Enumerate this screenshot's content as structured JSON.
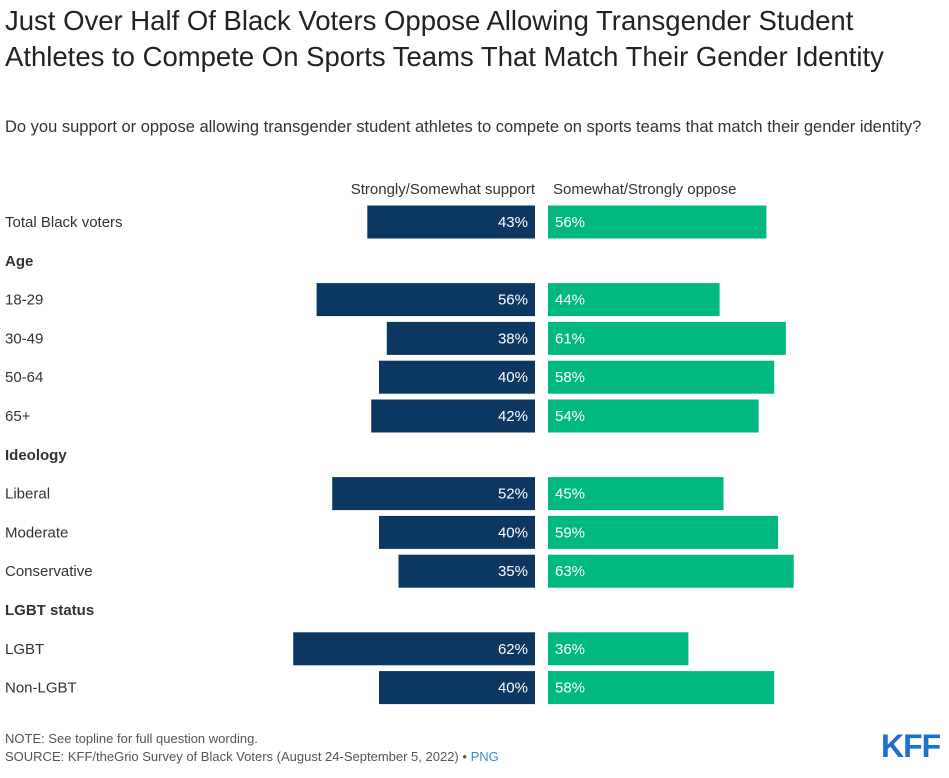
{
  "header": {
    "title": "Just Over Half Of Black Voters Oppose Allowing Transgender Student Athletes to Compete On Sports Teams That Match Their Gender Identity",
    "subtitle": "Do you support or oppose allowing transgender student athletes to compete on sports teams that match their gender identity?"
  },
  "colors": {
    "support": "#0c3760",
    "oppose": "#00b880",
    "bar_text": "#ffffff"
  },
  "chart_data": {
    "type": "bar",
    "orientation": "horizontal-diverging",
    "series": [
      {
        "name": "Strongly/Somewhat support",
        "key": "support"
      },
      {
        "name": "Somewhat/Strongly oppose",
        "key": "oppose"
      }
    ],
    "rows": [
      {
        "kind": "row",
        "label": "Total Black voters",
        "support": 43,
        "oppose": 56,
        "support_label": "43%",
        "oppose_label": "56%"
      },
      {
        "kind": "heading",
        "label": "Age"
      },
      {
        "kind": "row",
        "label": "18-29",
        "support": 56,
        "oppose": 44,
        "support_label": "56%",
        "oppose_label": "44%"
      },
      {
        "kind": "row",
        "label": "30-49",
        "support": 38,
        "oppose": 61,
        "support_label": "38%",
        "oppose_label": "61%"
      },
      {
        "kind": "row",
        "label": "50-64",
        "support": 40,
        "oppose": 58,
        "support_label": "40%",
        "oppose_label": "58%"
      },
      {
        "kind": "row",
        "label": "65+",
        "support": 42,
        "oppose": 54,
        "support_label": "42%",
        "oppose_label": "54%"
      },
      {
        "kind": "heading",
        "label": "Ideology"
      },
      {
        "kind": "row",
        "label": "Liberal",
        "support": 52,
        "oppose": 45,
        "support_label": "52%",
        "oppose_label": "45%"
      },
      {
        "kind": "row",
        "label": "Moderate",
        "support": 40,
        "oppose": 59,
        "support_label": "40%",
        "oppose_label": "59%"
      },
      {
        "kind": "row",
        "label": "Conservative",
        "support": 35,
        "oppose": 63,
        "support_label": "35%",
        "oppose_label": "63%"
      },
      {
        "kind": "heading",
        "label": "LGBT status"
      },
      {
        "kind": "row",
        "label": "LGBT",
        "support": 62,
        "oppose": 36,
        "support_label": "62%",
        "oppose_label": "36%"
      },
      {
        "kind": "row",
        "label": "Non-LGBT",
        "support": 40,
        "oppose": 58,
        "support_label": "40%",
        "oppose_label": "58%"
      }
    ]
  },
  "footer": {
    "note": "NOTE: See topline for full question wording.",
    "source": "SOURCE: KFF/theGrio Survey of Black Voters (August 24-September 5, 2022)",
    "separator": "•",
    "link_label": "PNG",
    "logo_text": "KFF"
  }
}
